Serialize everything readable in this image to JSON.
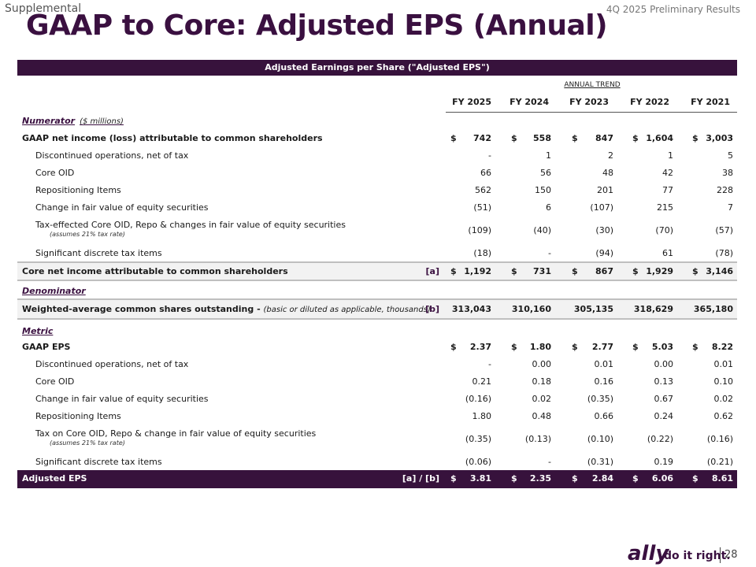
{
  "header": {
    "supplemental": "Supplemental",
    "report": "4Q 2025 Preliminary Results",
    "title": "GAAP to Core: Adjusted EPS (Annual)"
  },
  "table": {
    "banner": "Adjusted Earnings per Share (\"Adjusted EPS\")",
    "trend_label": "ANNUAL TREND",
    "columns": [
      "FY 2025",
      "FY 2024",
      "FY 2023",
      "FY 2022",
      "FY 2021"
    ],
    "numerator": {
      "label": "Numerator",
      "sub": "($ millions)"
    },
    "denominator": {
      "label": "Denominator"
    },
    "metric": {
      "label": "Metric"
    },
    "rows_num": [
      {
        "label": "GAAP net income (loss) attributable to common shareholders",
        "values": [
          "742",
          "558",
          "847",
          "1,604",
          "3,003"
        ],
        "currency": "$"
      },
      {
        "label": "Discontinued operations, net of tax",
        "values": [
          "-",
          "1",
          "2",
          "1",
          "5"
        ]
      },
      {
        "label": "Core OID",
        "values": [
          "66",
          "56",
          "48",
          "42",
          "38"
        ]
      },
      {
        "label": "Repositioning Items",
        "values": [
          "562",
          "150",
          "201",
          "77",
          "228"
        ]
      },
      {
        "label": "Change in fair value of equity securities",
        "values": [
          "(51)",
          "6",
          "(107)",
          "215",
          "7"
        ]
      },
      {
        "label": "Tax-effected Core OID, Repo & changes in fair value of equity securities",
        "note": "(assumes 21% tax rate)",
        "values": [
          "(109)",
          "(40)",
          "(30)",
          "(70)",
          "(57)"
        ]
      },
      {
        "label": "Significant discrete tax items",
        "values": [
          "(18)",
          "-",
          "(94)",
          "61",
          "(78)"
        ]
      }
    ],
    "core_row": {
      "label": "Core net income attributable to common shareholders",
      "tag": "[a]",
      "currency": "$",
      "values": [
        "1,192",
        "731",
        "867",
        "1,929",
        "3,146"
      ]
    },
    "shares_row": {
      "label": "Weighted-average common shares outstanding -",
      "sub": "(basic or diluted as applicable, thousands)",
      "tag": "[b]",
      "values": [
        "313,043",
        "310,160",
        "305,135",
        "318,629",
        "365,180"
      ]
    },
    "rows_metric": [
      {
        "label": "GAAP EPS",
        "values": [
          "2.37",
          "1.80",
          "2.77",
          "5.03",
          "8.22"
        ],
        "currency": "$"
      },
      {
        "label": "Discontinued operations, net of tax",
        "values": [
          "-",
          "0.00",
          "0.01",
          "0.00",
          "0.01"
        ]
      },
      {
        "label": "Core OID",
        "values": [
          "0.21",
          "0.18",
          "0.16",
          "0.13",
          "0.10"
        ]
      },
      {
        "label": "Change in fair value of equity securities",
        "values": [
          "(0.16)",
          "0.02",
          "(0.35)",
          "0.67",
          "0.02"
        ]
      },
      {
        "label": "Repositioning Items",
        "values": [
          "1.80",
          "0.48",
          "0.66",
          "0.24",
          "0.62"
        ]
      },
      {
        "label": "Tax on Core OID, Repo & change in fair value of equity securities",
        "note": "(assumes 21% tax rate)",
        "values": [
          "(0.35)",
          "(0.13)",
          "(0.10)",
          "(0.22)",
          "(0.16)"
        ]
      },
      {
        "label": "Significant discrete tax items",
        "values": [
          "(0.06)",
          "-",
          "(0.31)",
          "0.19",
          "(0.21)"
        ]
      }
    ],
    "adj_row": {
      "label": "Adjusted EPS",
      "tag": "[a] / [b]",
      "currency": "$",
      "values": [
        "3.81",
        "2.35",
        "2.84",
        "6.06",
        "8.61"
      ]
    }
  },
  "footer": {
    "brand": "ally",
    "slogan": "do it right.",
    "page": "28"
  }
}
